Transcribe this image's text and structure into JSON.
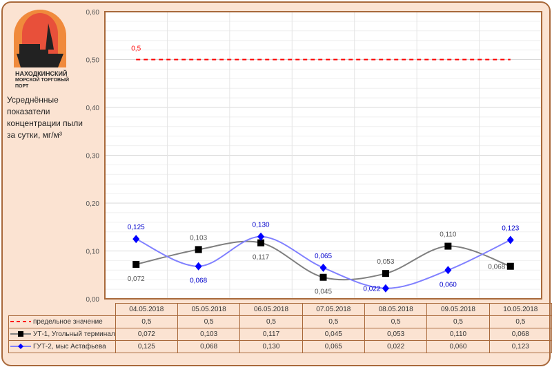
{
  "logo": {
    "line1": "НАХОДКИНСКИЙ",
    "line2": "МОРСКОЙ ТОРГОВЫЙ",
    "line3": "ПОРТ"
  },
  "subtitle": [
    "Усреднённые показатели",
    "концентрации пыли",
    "за сутки, мг/м³"
  ],
  "colors": {
    "limit": "#ff0000",
    "ut1": "#808080",
    "gut2": "#8080ff",
    "ut1_marker": "#000000",
    "gut2_marker": "#0000ff"
  },
  "chart_data": {
    "type": "line",
    "categories": [
      "04.05.2018",
      "05.05.2018",
      "06.05.2018",
      "07.05.2018",
      "08.05.2018",
      "09.05.2018",
      "10.05.2018"
    ],
    "ylim": [
      0,
      0.6
    ],
    "yticks": [
      "0,00",
      "0,10",
      "0,20",
      "0,30",
      "0,40",
      "0,50",
      "0,60"
    ],
    "grid": true,
    "legend": "table-bottom",
    "series": [
      {
        "name": "предельное значение",
        "values": [
          0.5,
          0.5,
          0.5,
          0.5,
          0.5,
          0.5,
          0.5
        ],
        "labels": [
          "0,5",
          "0,5",
          "0,5",
          "0,5",
          "0,5",
          "0,5",
          "0,5"
        ],
        "point_label": "0,5"
      },
      {
        "name": "УТ-1, Угольный терминал",
        "values": [
          0.072,
          0.103,
          0.117,
          0.045,
          0.053,
          0.11,
          0.068
        ],
        "labels": [
          "0,072",
          "0,103",
          "0,117",
          "0,045",
          "0,053",
          "0,110",
          "0,068"
        ]
      },
      {
        "name": "ГУТ-2, мыс Астафьева",
        "values": [
          0.125,
          0.068,
          0.13,
          0.065,
          0.022,
          0.06,
          0.123
        ],
        "labels": [
          "0,125",
          "0,068",
          "0,130",
          "0,065",
          "0,022",
          "0,060",
          "0,123"
        ]
      }
    ]
  }
}
